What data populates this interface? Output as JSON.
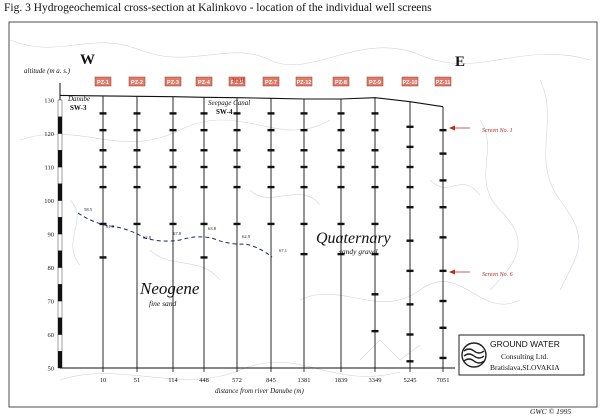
{
  "figure": {
    "title": "Fig. 3 Hydrogeochemical cross-section at Kalinkovo - location of the individual well screens",
    "west_label": "W",
    "east_label": "E",
    "altitude_axis_label": "altitude (m a. s.)",
    "distance_axis_label": "distance from river Danube (m)",
    "well_label": "Well",
    "copyright": "GWC © 1995"
  },
  "chart_data": {
    "type": "cross-section",
    "ylabel": "altitude (m a. s.)",
    "xlabel": "distance from river Danube (m)",
    "ylim": [
      50,
      135
    ],
    "y_ticks": [
      50,
      60,
      70,
      80,
      90,
      100,
      110,
      120,
      130
    ],
    "x_ticks": [
      "10",
      "51",
      "114",
      "448",
      "572",
      "845",
      "1381",
      "1839",
      "3349",
      "5245",
      "7051"
    ],
    "wells": [
      {
        "name": "PZ-1",
        "ground": 131.2,
        "screens": [
          126,
          121,
          115,
          110,
          104,
          93,
          83
        ]
      },
      {
        "name": "PZ-2",
        "ground": 131.1,
        "screens": [
          126,
          121,
          115,
          110,
          104,
          93
        ]
      },
      {
        "name": "PZ-3",
        "ground": 131.0,
        "screens": [
          126,
          121,
          115,
          110,
          104,
          93
        ]
      },
      {
        "name": "PZ-4",
        "ground": 130.8,
        "screens": [
          126,
          121,
          115,
          110,
          104,
          93,
          83
        ]
      },
      {
        "name": "PZ-5",
        "ground": 130.7,
        "screens": [
          126,
          121,
          115,
          110,
          104,
          93
        ]
      },
      {
        "name": "PZ-7",
        "ground": 130.5,
        "screens": [
          126,
          121,
          115,
          110,
          104,
          93
        ]
      },
      {
        "name": "PZ-12",
        "ground": 130.3,
        "screens": [
          126,
          121,
          115,
          110,
          104,
          93,
          84
        ]
      },
      {
        "name": "PZ-8",
        "ground": 130.3,
        "screens": [
          126,
          121,
          115,
          110,
          104,
          93,
          84
        ]
      },
      {
        "name": "PZ-9",
        "ground": 130.7,
        "screens": [
          126,
          121,
          115,
          110,
          104,
          93,
          84,
          72,
          61
        ]
      },
      {
        "name": "PZ-10",
        "ground": 129.5,
        "screens": [
          122,
          116,
          110,
          104,
          98,
          88,
          79,
          69,
          60,
          52
        ]
      },
      {
        "name": "PZ-11",
        "ground": 128.0,
        "screens": [
          121,
          114,
          106,
          98,
          89,
          79,
          70,
          62,
          53
        ]
      }
    ],
    "boundary_values": [
      {
        "label": "58.5"
      },
      {
        "label": "61.8"
      },
      {
        "label": "62.8"
      },
      {
        "label": "67.8"
      },
      {
        "label": "63.8"
      },
      {
        "label": "62.9"
      },
      {
        "label": "67.1"
      }
    ],
    "screen_annotations": [
      {
        "label": "Screen No. 1"
      },
      {
        "label": "Screen No. 6"
      }
    ]
  },
  "labels": {
    "danube": "Danube",
    "sw3": "SW-3",
    "seepage_canal": "Seepage Canal",
    "sw4": "SW-4",
    "neogene": "Neogene",
    "fine_sand": "fine sand",
    "quaternary": "Quaternary",
    "sandy_gravel": "sandy gravel"
  },
  "logo": {
    "line1": "GROUND WATER",
    "line2": "Consulting Ltd.",
    "line3": "Bratislava,SLOVAKIA"
  },
  "colors": {
    "well_box": "#e07a6a",
    "annotation_red": "#c0281e",
    "ink": "#1a1a1a",
    "map_bg": "#c9d2dc"
  }
}
